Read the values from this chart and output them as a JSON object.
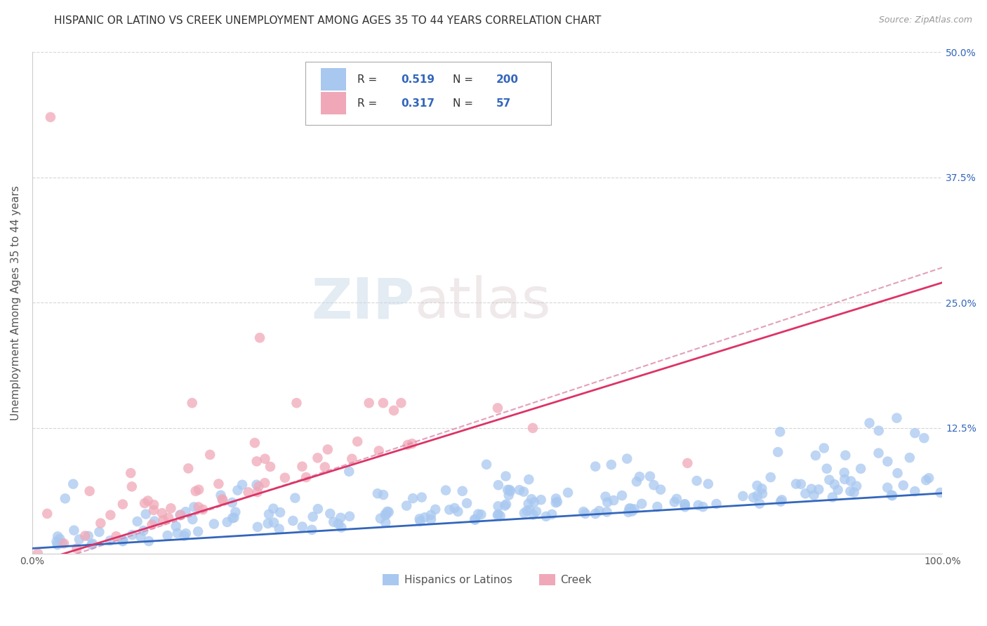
{
  "title": "HISPANIC OR LATINO VS CREEK UNEMPLOYMENT AMONG AGES 35 TO 44 YEARS CORRELATION CHART",
  "source": "Source: ZipAtlas.com",
  "ylabel": "Unemployment Among Ages 35 to 44 years",
  "xlim": [
    0.0,
    1.0
  ],
  "ylim": [
    0.0,
    0.5
  ],
  "x_ticks": [
    0.0,
    0.1,
    0.2,
    0.3,
    0.4,
    0.5,
    0.6,
    0.7,
    0.8,
    0.9,
    1.0
  ],
  "y_ticks": [
    0.0,
    0.125,
    0.25,
    0.375,
    0.5
  ],
  "blue_color": "#a8c8f0",
  "pink_color": "#f0a8b8",
  "blue_line_color": "#3366bb",
  "pink_line_color": "#dd3366",
  "pink_dashed_color": "#dd88aa",
  "legend_r_blue": "0.519",
  "legend_n_blue": "200",
  "legend_r_pink": "0.317",
  "legend_n_pink": "57",
  "legend_label_blue": "Hispanics or Latinos",
  "legend_label_pink": "Creek",
  "watermark_zip": "ZIP",
  "watermark_atlas": "atlas",
  "blue_slope": 0.055,
  "blue_intercept": 0.005,
  "pink_slope": 0.28,
  "pink_intercept": -0.01,
  "pink_dashed_slope": 0.3,
  "pink_dashed_intercept": -0.015,
  "grid_color": "#cccccc",
  "background_color": "#ffffff",
  "title_fontsize": 11,
  "axis_label_fontsize": 11,
  "tick_fontsize": 10,
  "legend_r_color": "#3366bb",
  "legend_n_color": "#3366bb"
}
